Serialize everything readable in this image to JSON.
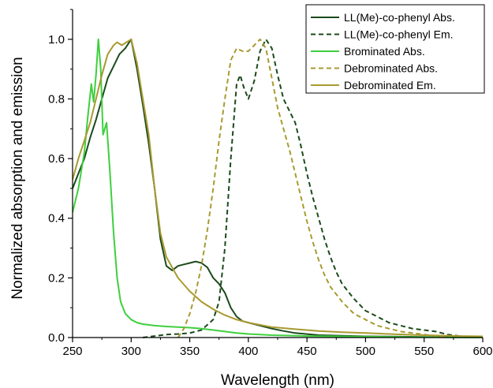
{
  "chart_data": {
    "type": "line",
    "title": "",
    "xlabel": "Wavelength (nm)",
    "ylabel": "Normalized absorption and emission",
    "xlim": [
      250,
      600
    ],
    "ylim": [
      0,
      1.1
    ],
    "x_ticks": [
      250,
      300,
      350,
      400,
      450,
      500,
      550,
      600
    ],
    "y_ticks": [
      0.0,
      0.2,
      0.4,
      0.6,
      0.8,
      1.0
    ],
    "x_tick_labels": [
      "250",
      "300",
      "350",
      "400",
      "450",
      "500",
      "550",
      "600"
    ],
    "y_tick_labels": [
      "0.0",
      "0.2",
      "0.4",
      "0.6",
      "0.8",
      "1.0"
    ],
    "grid": false,
    "legend_position": "top-right",
    "series": [
      {
        "name": "LL(Me)-co-phenyl Abs.",
        "color": "#1b4a1b",
        "dash": "solid",
        "points": [
          [
            250,
            0.5
          ],
          [
            255,
            0.55
          ],
          [
            260,
            0.6
          ],
          [
            265,
            0.67
          ],
          [
            270,
            0.73
          ],
          [
            275,
            0.8
          ],
          [
            280,
            0.87
          ],
          [
            285,
            0.91
          ],
          [
            290,
            0.95
          ],
          [
            295,
            0.97
          ],
          [
            300,
            1.0
          ],
          [
            305,
            0.9
          ],
          [
            310,
            0.78
          ],
          [
            315,
            0.65
          ],
          [
            320,
            0.5
          ],
          [
            325,
            0.33
          ],
          [
            330,
            0.24
          ],
          [
            335,
            0.225
          ],
          [
            340,
            0.24
          ],
          [
            345,
            0.245
          ],
          [
            350,
            0.25
          ],
          [
            355,
            0.255
          ],
          [
            360,
            0.25
          ],
          [
            365,
            0.235
          ],
          [
            370,
            0.2
          ],
          [
            375,
            0.18
          ],
          [
            380,
            0.15
          ],
          [
            385,
            0.1
          ],
          [
            390,
            0.07
          ],
          [
            395,
            0.055
          ],
          [
            400,
            0.05
          ],
          [
            410,
            0.04
          ],
          [
            420,
            0.03
          ],
          [
            430,
            0.022
          ],
          [
            440,
            0.015
          ],
          [
            460,
            0.008
          ],
          [
            500,
            0.004
          ],
          [
            550,
            0.002
          ],
          [
            600,
            0.0
          ]
        ]
      },
      {
        "name": "LL(Me)-co-phenyl Em.",
        "color": "#1b4a1b",
        "dash": "dashed",
        "points": [
          [
            310,
            0.0
          ],
          [
            320,
            0.005
          ],
          [
            330,
            0.01
          ],
          [
            340,
            0.012
          ],
          [
            350,
            0.015
          ],
          [
            360,
            0.025
          ],
          [
            370,
            0.06
          ],
          [
            375,
            0.12
          ],
          [
            380,
            0.3
          ],
          [
            385,
            0.6
          ],
          [
            390,
            0.85
          ],
          [
            393,
            0.88
          ],
          [
            396,
            0.84
          ],
          [
            400,
            0.8
          ],
          [
            405,
            0.86
          ],
          [
            410,
            0.96
          ],
          [
            415,
            1.0
          ],
          [
            420,
            0.97
          ],
          [
            425,
            0.88
          ],
          [
            430,
            0.8
          ],
          [
            435,
            0.76
          ],
          [
            440,
            0.72
          ],
          [
            445,
            0.64
          ],
          [
            450,
            0.55
          ],
          [
            455,
            0.47
          ],
          [
            460,
            0.4
          ],
          [
            465,
            0.33
          ],
          [
            470,
            0.27
          ],
          [
            475,
            0.22
          ],
          [
            480,
            0.18
          ],
          [
            490,
            0.13
          ],
          [
            500,
            0.09
          ],
          [
            510,
            0.07
          ],
          [
            520,
            0.05
          ],
          [
            530,
            0.04
          ],
          [
            540,
            0.03
          ],
          [
            550,
            0.025
          ],
          [
            560,
            0.02
          ],
          [
            570,
            0.01
          ],
          [
            580,
            0.005
          ],
          [
            590,
            0.0
          ]
        ]
      },
      {
        "name": "Brominated Abs.",
        "color": "#3ecf3e",
        "dash": "solid",
        "points": [
          [
            250,
            0.42
          ],
          [
            255,
            0.5
          ],
          [
            260,
            0.62
          ],
          [
            263,
            0.74
          ],
          [
            266,
            0.85
          ],
          [
            268,
            0.79
          ],
          [
            270,
            0.88
          ],
          [
            272,
            1.0
          ],
          [
            274,
            0.9
          ],
          [
            276,
            0.68
          ],
          [
            279,
            0.72
          ],
          [
            282,
            0.55
          ],
          [
            285,
            0.35
          ],
          [
            288,
            0.2
          ],
          [
            291,
            0.12
          ],
          [
            295,
            0.08
          ],
          [
            300,
            0.06
          ],
          [
            305,
            0.05
          ],
          [
            310,
            0.045
          ],
          [
            320,
            0.04
          ],
          [
            330,
            0.037
          ],
          [
            340,
            0.035
          ],
          [
            350,
            0.033
          ],
          [
            360,
            0.03
          ],
          [
            370,
            0.025
          ],
          [
            380,
            0.02
          ],
          [
            390,
            0.015
          ],
          [
            400,
            0.012
          ],
          [
            420,
            0.008
          ],
          [
            450,
            0.005
          ],
          [
            500,
            0.003
          ],
          [
            550,
            0.001
          ],
          [
            600,
            0.0
          ]
        ]
      },
      {
        "name": "Debrominated Abs.",
        "color": "#a89a30",
        "dash": "dashed",
        "points": [
          [
            340,
            0.0
          ],
          [
            345,
            0.03
          ],
          [
            350,
            0.08
          ],
          [
            355,
            0.15
          ],
          [
            360,
            0.24
          ],
          [
            365,
            0.36
          ],
          [
            370,
            0.5
          ],
          [
            375,
            0.66
          ],
          [
            380,
            0.8
          ],
          [
            385,
            0.93
          ],
          [
            390,
            0.97
          ],
          [
            395,
            0.96
          ],
          [
            400,
            0.96
          ],
          [
            405,
            0.98
          ],
          [
            410,
            1.0
          ],
          [
            415,
            0.97
          ],
          [
            420,
            0.87
          ],
          [
            425,
            0.77
          ],
          [
            430,
            0.7
          ],
          [
            435,
            0.63
          ],
          [
            440,
            0.55
          ],
          [
            445,
            0.47
          ],
          [
            450,
            0.39
          ],
          [
            455,
            0.32
          ],
          [
            460,
            0.26
          ],
          [
            465,
            0.21
          ],
          [
            470,
            0.17
          ],
          [
            480,
            0.12
          ],
          [
            490,
            0.08
          ],
          [
            500,
            0.06
          ],
          [
            510,
            0.04
          ],
          [
            520,
            0.03
          ],
          [
            530,
            0.02
          ],
          [
            540,
            0.015
          ],
          [
            550,
            0.01
          ],
          [
            560,
            0.005
          ],
          [
            570,
            0.0
          ]
        ]
      },
      {
        "name": "Debrominated Em.",
        "color": "#a89a30",
        "dash": "solid",
        "points": [
          [
            250,
            0.53
          ],
          [
            255,
            0.6
          ],
          [
            260,
            0.66
          ],
          [
            265,
            0.72
          ],
          [
            270,
            0.8
          ],
          [
            275,
            0.88
          ],
          [
            280,
            0.95
          ],
          [
            285,
            0.98
          ],
          [
            288,
            0.99
          ],
          [
            292,
            0.98
          ],
          [
            296,
            0.99
          ],
          [
            300,
            1.0
          ],
          [
            305,
            0.92
          ],
          [
            310,
            0.8
          ],
          [
            315,
            0.68
          ],
          [
            320,
            0.5
          ],
          [
            325,
            0.35
          ],
          [
            330,
            0.27
          ],
          [
            340,
            0.2
          ],
          [
            350,
            0.155
          ],
          [
            360,
            0.12
          ],
          [
            370,
            0.095
          ],
          [
            380,
            0.075
          ],
          [
            390,
            0.06
          ],
          [
            400,
            0.05
          ],
          [
            420,
            0.035
          ],
          [
            440,
            0.028
          ],
          [
            460,
            0.022
          ],
          [
            480,
            0.018
          ],
          [
            500,
            0.015
          ],
          [
            520,
            0.012
          ],
          [
            540,
            0.009
          ],
          [
            560,
            0.007
          ],
          [
            580,
            0.005
          ],
          [
            600,
            0.004
          ]
        ]
      }
    ]
  }
}
